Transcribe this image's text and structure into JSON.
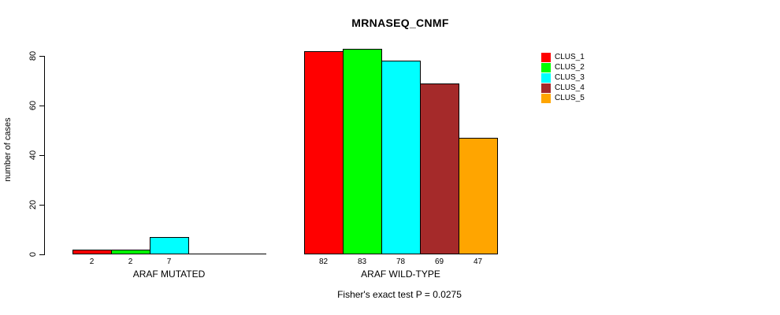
{
  "title": "MRNASEQ_CNMF",
  "y_axis": {
    "label": "number of cases",
    "tick_labels": [
      "0",
      "20",
      "40",
      "60",
      "80"
    ]
  },
  "caption": "Fisher's exact test P = 0.0275",
  "legend": {
    "items": [
      {
        "label": "CLUS_1",
        "color": "#ff0000"
      },
      {
        "label": "CLUS_2",
        "color": "#00ff00"
      },
      {
        "label": "CLUS_3",
        "color": "#00ffff"
      },
      {
        "label": "CLUS_4",
        "color": "#a52a2a"
      },
      {
        "label": "CLUS_5",
        "color": "#ffa500"
      }
    ]
  },
  "chart_data": {
    "type": "bar",
    "title": "MRNASEQ_CNMF",
    "xlabel": "",
    "ylabel": "number of cases",
    "ylim": [
      0,
      80
    ],
    "yticks": [
      0,
      20,
      40,
      60,
      80
    ],
    "grid": false,
    "legend_position": "top-right",
    "categories": [
      "ARAF MUTATED",
      "ARAF WILD-TYPE"
    ],
    "series": [
      {
        "name": "CLUS_1",
        "color": "#ff0000",
        "values": [
          2,
          82
        ]
      },
      {
        "name": "CLUS_2",
        "color": "#00ff00",
        "values": [
          2,
          83
        ]
      },
      {
        "name": "CLUS_3",
        "color": "#00ffff",
        "values": [
          7,
          78
        ]
      },
      {
        "name": "CLUS_4",
        "color": "#a52a2a",
        "values": [
          0,
          69
        ]
      },
      {
        "name": "CLUS_5",
        "color": "#ffa500",
        "values": [
          0,
          47
        ]
      }
    ],
    "bar_value_labels": [
      [
        "2",
        "2",
        "7",
        "",
        ""
      ],
      [
        "82",
        "83",
        "78",
        "69",
        "47"
      ]
    ],
    "annotation": "Fisher's exact test P = 0.0275"
  }
}
